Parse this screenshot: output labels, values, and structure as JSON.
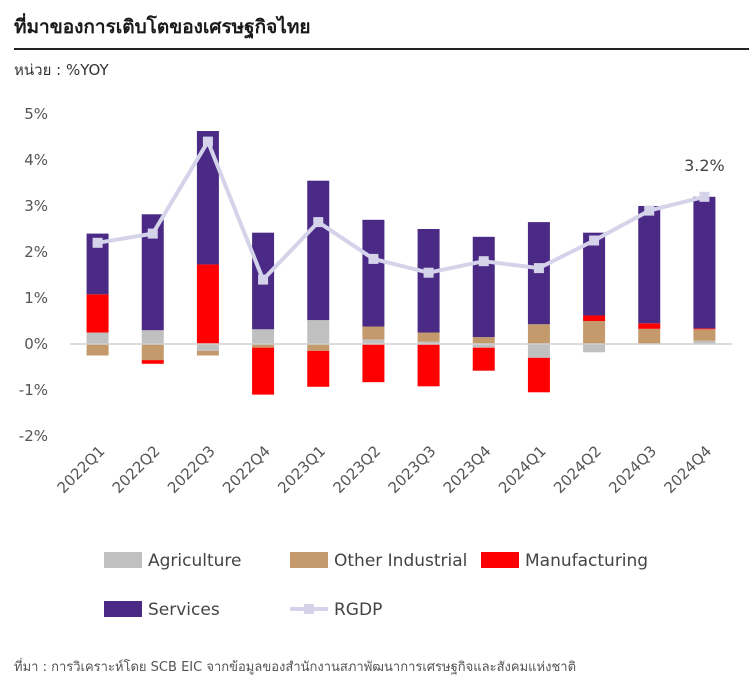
{
  "header": {
    "title": "ที่มาของการเติบโตของเศรษฐกิจไทย",
    "unit": "หน่วย : %YOY"
  },
  "footer": {
    "source": "ที่มา : การวิเคราะห์โดย SCB EIC จากข้อมูลของสำนักงานสภาพัฒนาการเศรษฐกิจและสังคมแห่งชาติ"
  },
  "chart_data": {
    "type": "bar",
    "stacked": true,
    "categories": [
      "2022Q1",
      "2022Q2",
      "2022Q3",
      "2022Q4",
      "2023Q1",
      "2023Q2",
      "2023Q3",
      "2023Q4",
      "2024Q1",
      "2024Q2",
      "2024Q3",
      "2024Q4"
    ],
    "ylim": [
      -2,
      5
    ],
    "yticks": [
      -2,
      -1,
      0,
      1,
      2,
      3,
      4,
      5
    ],
    "ytick_labels": [
      "-2%",
      "-1%",
      "0%",
      "1%",
      "2%",
      "3%",
      "4%",
      "5%"
    ],
    "series": [
      {
        "name": "Agriculture",
        "color": "#c0c0c0",
        "values": [
          0.25,
          0.3,
          -0.15,
          0.32,
          0.52,
          0.1,
          0.05,
          -0.08,
          -0.3,
          -0.18,
          0.0,
          0.07
        ]
      },
      {
        "name": "Other Industrial",
        "color": "#c49a6c",
        "values": [
          -0.25,
          -0.35,
          -0.1,
          -0.08,
          -0.15,
          0.28,
          0.2,
          0.15,
          0.43,
          0.5,
          0.33,
          0.25
        ]
      },
      {
        "name": "Manufacturing",
        "color": "#ff0000",
        "values": [
          0.83,
          -0.08,
          1.73,
          -1.02,
          -0.78,
          -0.83,
          -0.92,
          -0.5,
          -0.75,
          0.12,
          0.12,
          0.02
        ]
      },
      {
        "name": "Services",
        "color": "#4b2a86",
        "values": [
          1.32,
          2.52,
          2.9,
          2.1,
          3.03,
          2.32,
          2.25,
          2.18,
          2.22,
          1.8,
          2.55,
          2.86
        ]
      }
    ],
    "line": {
      "name": "RGDP",
      "color": "#d5d3ea",
      "values": [
        2.2,
        2.4,
        4.4,
        1.4,
        2.65,
        1.85,
        1.55,
        1.8,
        1.65,
        2.25,
        2.9,
        3.2
      ]
    },
    "annotation": {
      "category": "2024Q4",
      "text": "3.2%"
    },
    "grid": false,
    "legend_position": "bottom"
  }
}
